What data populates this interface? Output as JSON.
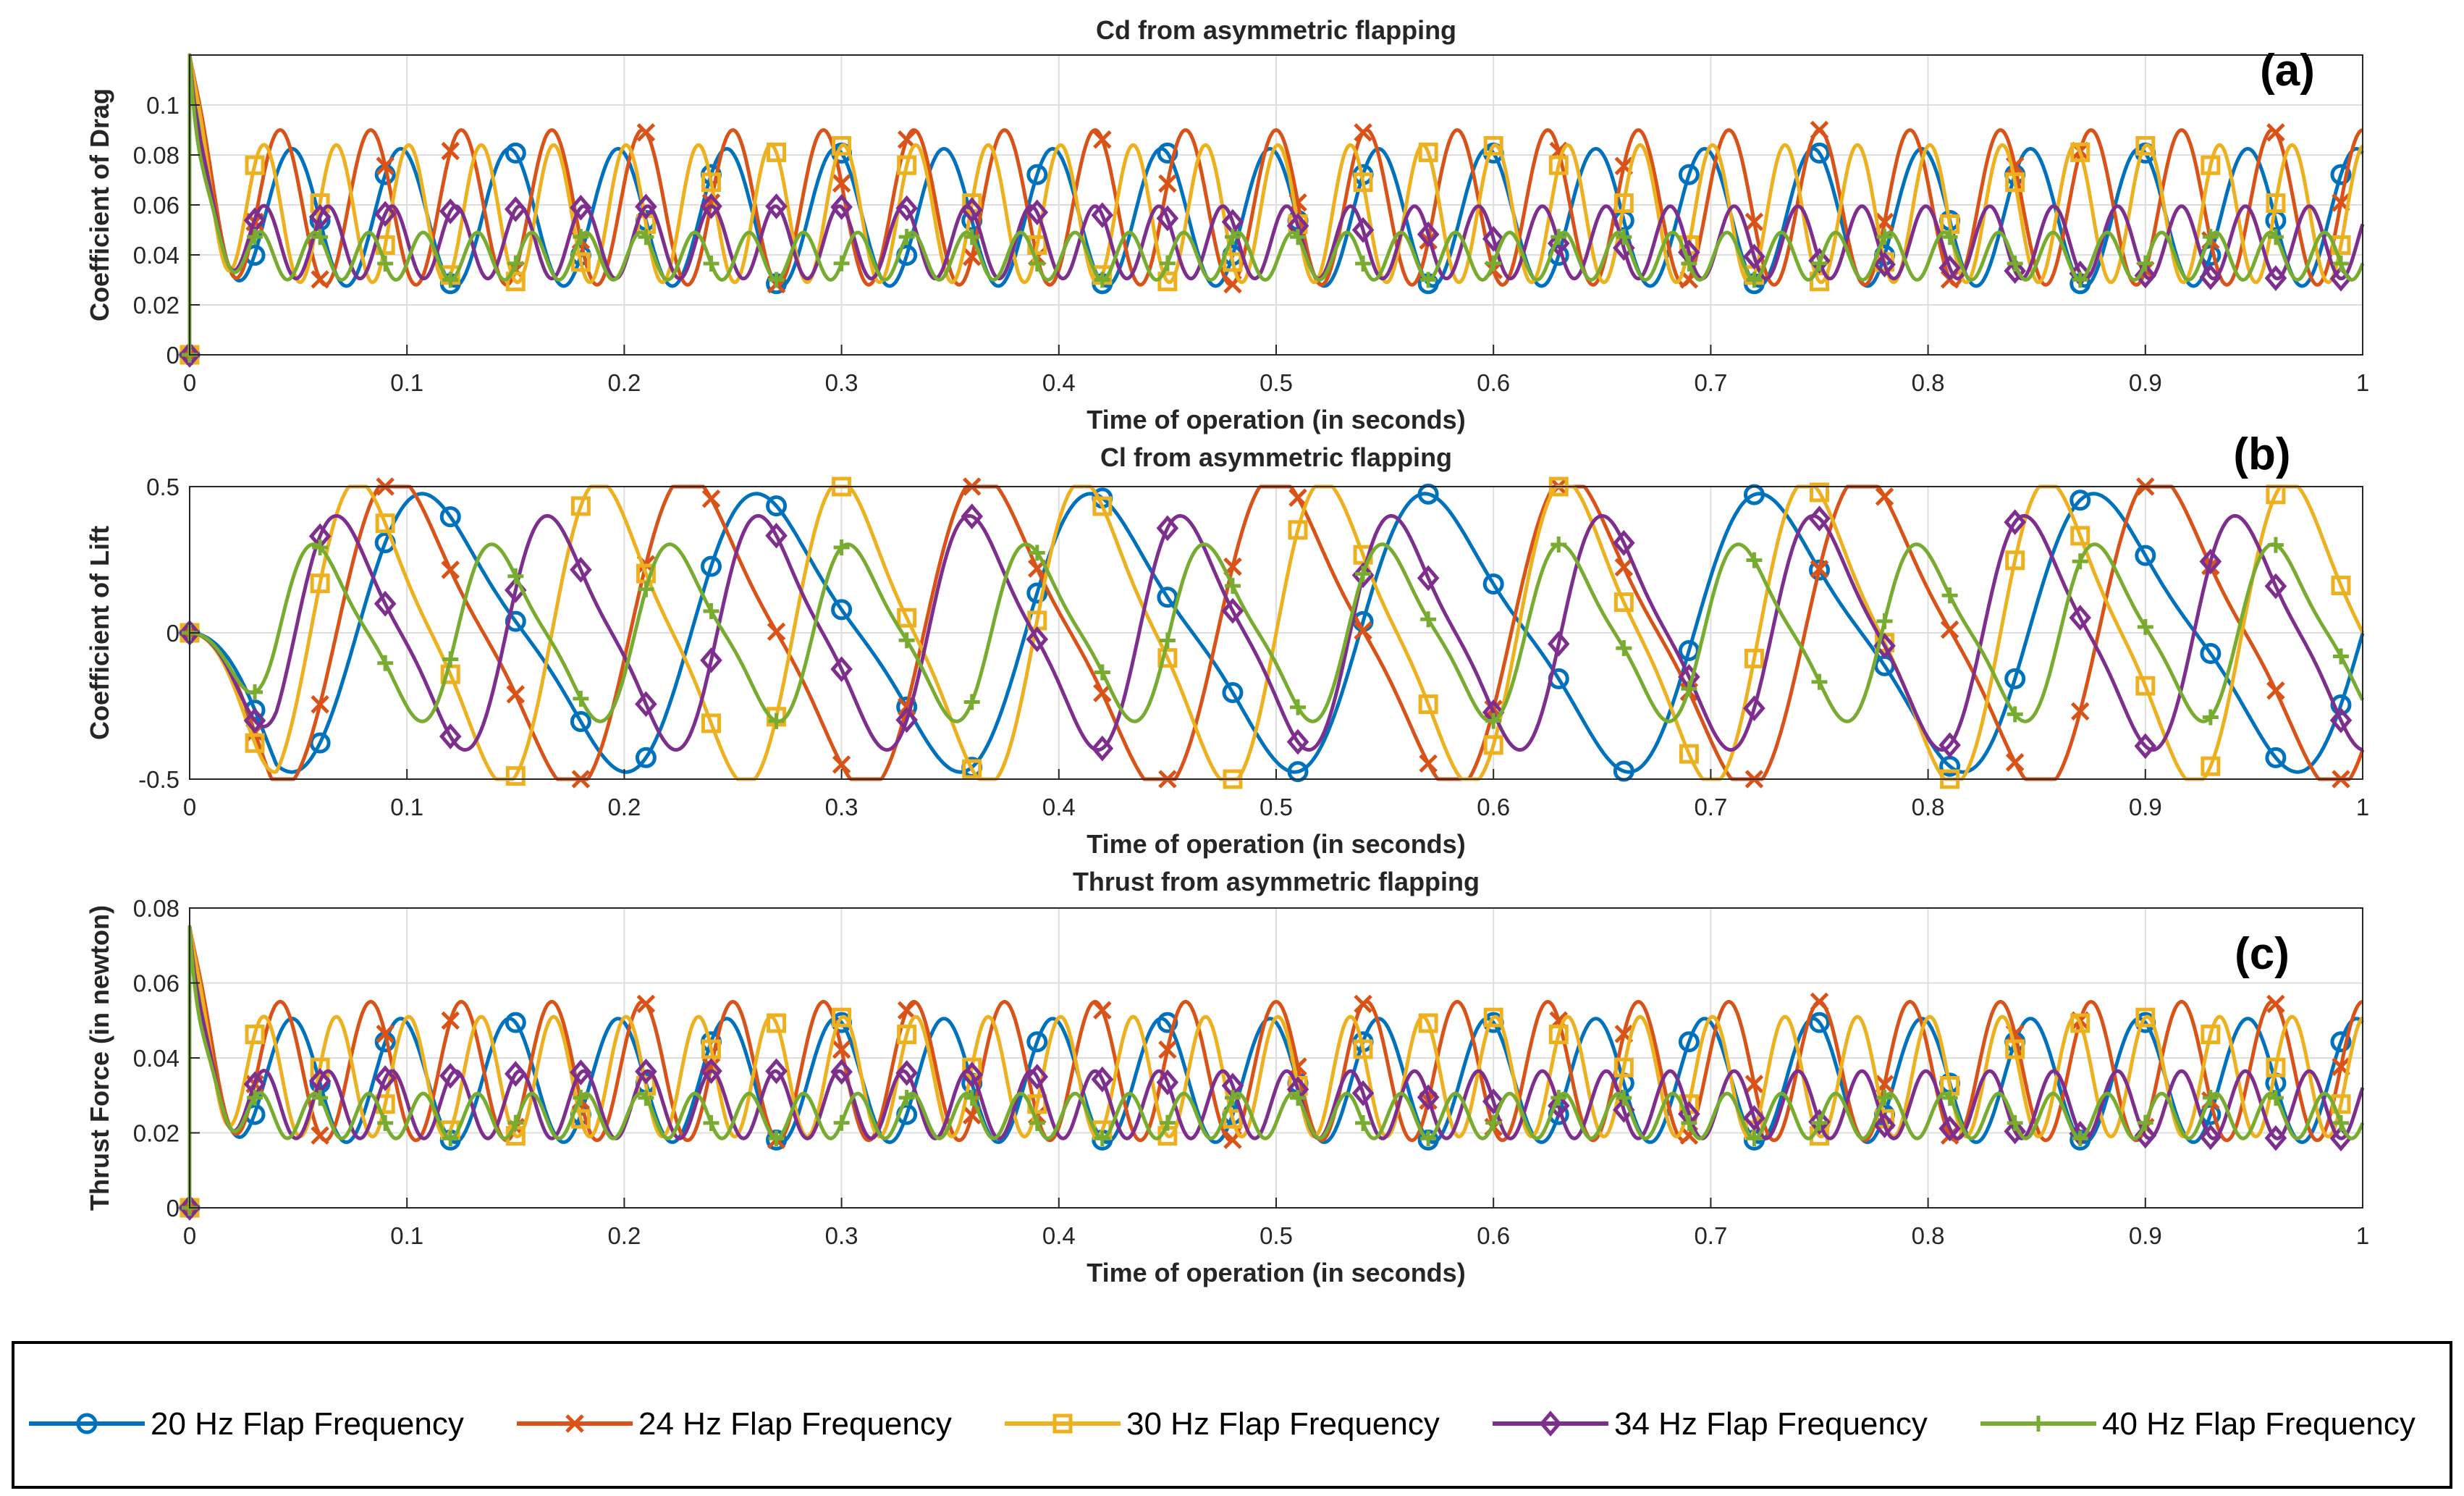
{
  "chart_data": [
    {
      "type": "line",
      "panel_label": "(a)",
      "title": "Cd from asymmetric flapping",
      "xlabel": "Time of operation (in seconds)",
      "ylabel": "Coefficient of Drag",
      "xlim": [
        0,
        1
      ],
      "ylim": [
        0,
        0.12
      ],
      "xticks": [
        0,
        0.1,
        0.2,
        0.3,
        0.4,
        0.5,
        0.6,
        0.7,
        0.8,
        0.9,
        1
      ],
      "xtick_labels": [
        "0",
        "0.1",
        "0.2",
        "0.3",
        "0.4",
        "0.5",
        "0.6",
        "0.7",
        "0.8",
        "0.9",
        "1"
      ],
      "yticks": [
        0,
        0.02,
        0.04,
        0.06,
        0.08,
        0.1
      ],
      "ytick_labels": [
        "0",
        "0.02",
        "0.04",
        "0.06",
        "0.08",
        "0.1"
      ],
      "grid": true,
      "series": [
        {
          "name": "20 Hz Flap Frequency",
          "freq": 20,
          "base": 0.055,
          "amp": 0.0275,
          "phase": 1.93,
          "start_spike": 0.12
        },
        {
          "name": "24 Hz Flap Frequency",
          "freq": 24,
          "base": 0.059,
          "amp": 0.031,
          "phase": 1.57,
          "start_spike": 0.12
        },
        {
          "name": "30 Hz Flap Frequency",
          "freq": 30,
          "base": 0.0565,
          "amp": 0.0275,
          "phase": 1.41,
          "start_spike": 0.12
        },
        {
          "name": "34 Hz Flap Frequency",
          "freq": 34,
          "base": 0.045,
          "amp": 0.0145,
          "phase": 0.53,
          "start_spike": 0.12
        },
        {
          "name": "40 Hz Flap Frequency",
          "freq": 40,
          "base": 0.0395,
          "amp": 0.0095,
          "phase": -0.31,
          "start_spike": 0.12
        }
      ]
    },
    {
      "type": "line",
      "panel_label": "(b)",
      "title": "Cl from asymmetric flapping",
      "xlabel": "Time of operation (in seconds)",
      "ylabel": "Coefficient of Lift",
      "xlim": [
        0,
        1
      ],
      "ylim": [
        -0.5,
        0.5
      ],
      "xticks": [
        0,
        0.1,
        0.2,
        0.3,
        0.4,
        0.5,
        0.6,
        0.7,
        0.8,
        0.9,
        1
      ],
      "xtick_labels": [
        "0",
        "0.1",
        "0.2",
        "0.3",
        "0.4",
        "0.5",
        "0.6",
        "0.7",
        "0.8",
        "0.9",
        "1"
      ],
      "yticks": [
        -0.5,
        0,
        0.5
      ],
      "ytick_labels": [
        "-0.5",
        "0",
        "0.5"
      ],
      "grid": true,
      "series": [
        {
          "name": "20 Hz Flap Frequency",
          "freq": 6.5,
          "base": 0,
          "amp": 0.44,
          "phase": 3.14,
          "start_spike": 0
        },
        {
          "name": "24 Hz Flap Frequency",
          "freq": 7.4,
          "base": 0,
          "amp": 0.5,
          "phase": 3.14,
          "start_spike": 0
        },
        {
          "name": "30 Hz Flap Frequency",
          "freq": 9.0,
          "base": 0,
          "amp": 0.48,
          "phase": 3.14,
          "start_spike": 0
        },
        {
          "name": "34 Hz Flap Frequency",
          "freq": 10.3,
          "base": 0,
          "amp": 0.37,
          "phase": 3.14,
          "start_spike": 0
        },
        {
          "name": "40 Hz Flap Frequency",
          "freq": 12.2,
          "base": 0,
          "amp": 0.28,
          "phase": 3.14,
          "start_spike": 0
        }
      ]
    },
    {
      "type": "line",
      "panel_label": "(c)",
      "title": "Thrust from asymmetric flapping",
      "xlabel": "Time of operation (in seconds)",
      "ylabel": "Thrust Force (in newton)",
      "xlim": [
        0,
        1
      ],
      "ylim": [
        0,
        0.08
      ],
      "xticks": [
        0,
        0.1,
        0.2,
        0.3,
        0.4,
        0.5,
        0.6,
        0.7,
        0.8,
        0.9,
        1
      ],
      "xtick_labels": [
        "0",
        "0.1",
        "0.2",
        "0.3",
        "0.4",
        "0.5",
        "0.6",
        "0.7",
        "0.8",
        "0.9",
        "1"
      ],
      "yticks": [
        0,
        0.02,
        0.04,
        0.06,
        0.08
      ],
      "ytick_labels": [
        "0",
        "0.02",
        "0.04",
        "0.06",
        "0.08"
      ],
      "grid": true,
      "series": [
        {
          "name": "20 Hz Flap Frequency",
          "freq": 20,
          "base": 0.034,
          "amp": 0.0165,
          "phase": 1.93,
          "start_spike": 0.075
        },
        {
          "name": "24 Hz Flap Frequency",
          "freq": 24,
          "base": 0.0365,
          "amp": 0.0185,
          "phase": 1.57,
          "start_spike": 0.075
        },
        {
          "name": "30 Hz Flap Frequency",
          "freq": 30,
          "base": 0.035,
          "amp": 0.016,
          "phase": 1.41,
          "start_spike": 0.075
        },
        {
          "name": "34 Hz Flap Frequency",
          "freq": 34,
          "base": 0.0275,
          "amp": 0.009,
          "phase": 0.53,
          "start_spike": 0.075
        },
        {
          "name": "40 Hz Flap Frequency",
          "freq": 40,
          "base": 0.0245,
          "amp": 0.006,
          "phase": -0.31,
          "start_spike": 0.075
        }
      ]
    }
  ],
  "legend": {
    "placement": "bottom",
    "entries": [
      {
        "label": "20 Hz Flap Frequency",
        "color": "#0072BD",
        "marker": "circle"
      },
      {
        "label": "24 Hz Flap Frequency",
        "color": "#D95319",
        "marker": "x"
      },
      {
        "label": "30 Hz Flap Frequency",
        "color": "#EDB120",
        "marker": "square"
      },
      {
        "label": "34 Hz Flap Frequency",
        "color": "#7E2F8E",
        "marker": "diamond"
      },
      {
        "label": "40 Hz Flap Frequency",
        "color": "#77AC30",
        "marker": "plus"
      }
    ]
  }
}
